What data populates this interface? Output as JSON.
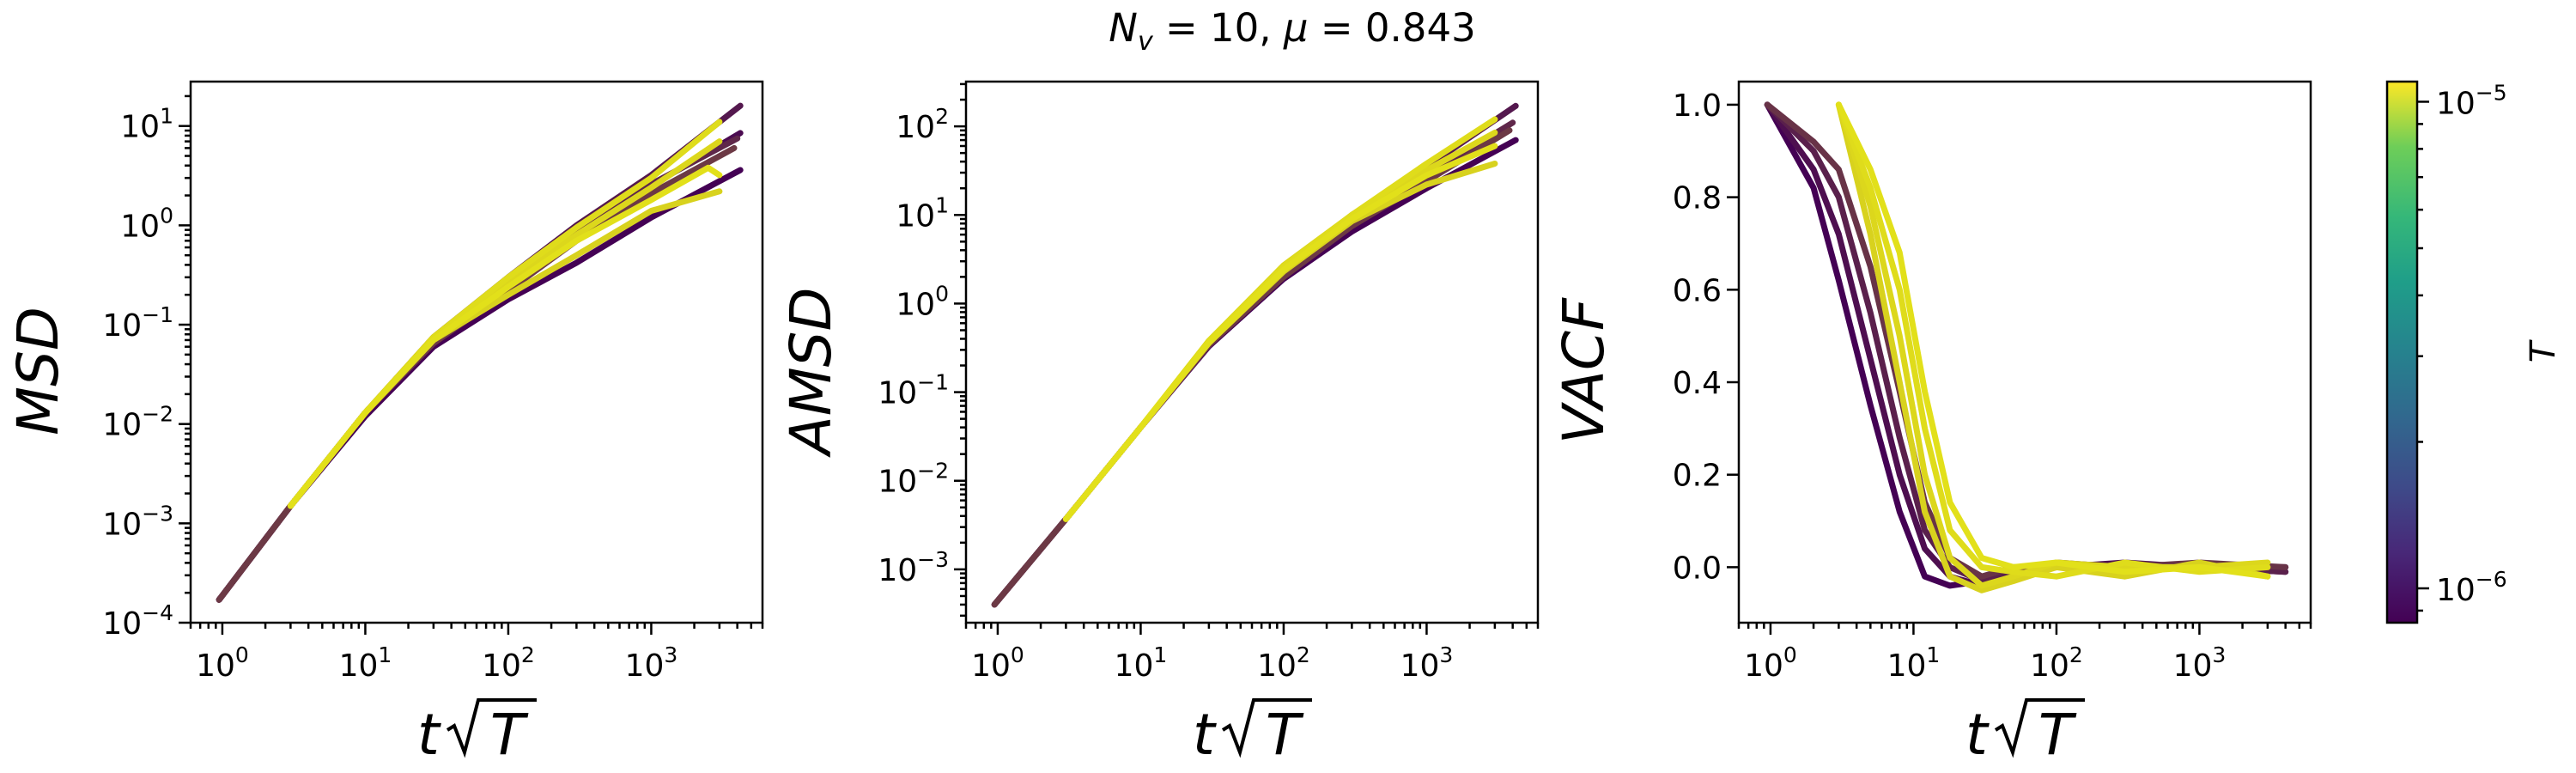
{
  "title": "N_v = 10, μ = 0.843",
  "title_parts": {
    "n": "N",
    "n_sub": "v",
    "n_val": " = 10, ",
    "mu": "μ",
    "mu_val": " = 0.843"
  },
  "colors": {
    "low_T": "#440154",
    "high_T": "#e5e419"
  },
  "colorbar": {
    "label": "T",
    "scale": "log",
    "colormap": "viridis",
    "range": [
      8.5e-07,
      1.1e-05
    ],
    "ticks": [
      {
        "value": 1e-06,
        "base": "10",
        "exp": "−6"
      },
      {
        "value": 1e-05,
        "base": "10",
        "exp": "−5"
      }
    ]
  },
  "chart_data": [
    {
      "id": "msd",
      "type": "line",
      "xscale": "log",
      "yscale": "log",
      "xlim": [
        0.6,
        6000
      ],
      "ylim": [
        0.0001,
        28
      ],
      "xlabel": {
        "main": "t",
        "rad": "T"
      },
      "ylabel": "MSD",
      "xticks": [
        {
          "value": 1,
          "base": "10",
          "exp": "0"
        },
        {
          "value": 10,
          "base": "10",
          "exp": "1"
        },
        {
          "value": 100,
          "base": "10",
          "exp": "2"
        },
        {
          "value": 1000,
          "base": "10",
          "exp": "3"
        }
      ],
      "yticks": [
        {
          "value": 0.0001,
          "base": "10",
          "exp": "−4"
        },
        {
          "value": 0.001,
          "base": "10",
          "exp": "−3"
        },
        {
          "value": 0.01,
          "base": "10",
          "exp": "−2"
        },
        {
          "value": 0.1,
          "base": "10",
          "exp": "−1"
        },
        {
          "value": 1,
          "base": "10",
          "exp": "0"
        },
        {
          "value": 10,
          "base": "10",
          "exp": "1"
        }
      ],
      "series": [
        {
          "T": 8.5e-07,
          "x": [
            0.95,
            3,
            10,
            30,
            100,
            300,
            1000,
            4200
          ],
          "y": [
            0.00017,
            0.0015,
            0.012,
            0.06,
            0.18,
            0.42,
            1.2,
            3.6
          ]
        },
        {
          "T": 9.5e-07,
          "x": [
            0.95,
            3,
            10,
            30,
            100,
            300,
            1000,
            4200
          ],
          "y": [
            0.00017,
            0.0015,
            0.013,
            0.07,
            0.25,
            0.8,
            2.5,
            8.5
          ]
        },
        {
          "T": 1.1e-06,
          "x": [
            0.95,
            3,
            10,
            30,
            100,
            300,
            1000,
            4200
          ],
          "y": [
            0.00017,
            0.0015,
            0.013,
            0.075,
            0.3,
            1.0,
            3.2,
            16
          ]
        },
        {
          "T": 1.3e-06,
          "x": [
            0.95,
            3,
            10,
            30,
            100,
            300,
            1000,
            4000
          ],
          "y": [
            0.00017,
            0.0015,
            0.013,
            0.07,
            0.26,
            0.85,
            2.6,
            7.5
          ]
        },
        {
          "T": 1.6e-06,
          "x": [
            0.95,
            3,
            10,
            30,
            100,
            300,
            1000,
            3800
          ],
          "y": [
            0.00017,
            0.0015,
            0.013,
            0.065,
            0.22,
            0.7,
            2.1,
            6
          ]
        },
        {
          "T": 9e-06,
          "x": [
            3,
            10,
            30,
            100,
            300,
            1000,
            3000
          ],
          "y": [
            0.0015,
            0.013,
            0.07,
            0.2,
            0.5,
            1.4,
            2.2
          ]
        },
        {
          "T": 9.5e-06,
          "x": [
            3,
            10,
            30,
            100,
            300,
            1000,
            3000
          ],
          "y": [
            0.0015,
            0.013,
            0.075,
            0.27,
            0.8,
            2.4,
            7
          ]
        },
        {
          "T": 1e-05,
          "x": [
            3,
            10,
            30,
            100,
            300,
            1000,
            3000
          ],
          "y": [
            0.0015,
            0.013,
            0.075,
            0.3,
            0.95,
            3.0,
            11
          ]
        },
        {
          "T": 1.05e-05,
          "x": [
            3,
            10,
            30,
            100,
            300,
            1000,
            2500,
            3000
          ],
          "y": [
            0.0015,
            0.013,
            0.07,
            0.24,
            0.7,
            1.8,
            3.8,
            3.2
          ]
        }
      ]
    },
    {
      "id": "amsd",
      "type": "line",
      "xscale": "log",
      "yscale": "log",
      "xlim": [
        0.6,
        6000
      ],
      "ylim": [
        0.00025,
        320
      ],
      "xlabel": {
        "main": "t",
        "rad": "T"
      },
      "ylabel": "AMSD",
      "xticks": [
        {
          "value": 1,
          "base": "10",
          "exp": "0"
        },
        {
          "value": 10,
          "base": "10",
          "exp": "1"
        },
        {
          "value": 100,
          "base": "10",
          "exp": "2"
        },
        {
          "value": 1000,
          "base": "10",
          "exp": "3"
        }
      ],
      "yticks": [
        {
          "value": 0.001,
          "base": "10",
          "exp": "−3"
        },
        {
          "value": 0.01,
          "base": "10",
          "exp": "−2"
        },
        {
          "value": 0.1,
          "base": "10",
          "exp": "−1"
        },
        {
          "value": 1,
          "base": "10",
          "exp": "0"
        },
        {
          "value": 10,
          "base": "10",
          "exp": "1"
        },
        {
          "value": 100,
          "base": "10",
          "exp": "2"
        }
      ],
      "series": [
        {
          "T": 8.5e-07,
          "x": [
            0.95,
            3,
            10,
            30,
            100,
            300,
            1000,
            4200
          ],
          "y": [
            0.0004,
            0.0037,
            0.04,
            0.33,
            1.9,
            6.5,
            20,
            70
          ]
        },
        {
          "T": 1.1e-06,
          "x": [
            0.95,
            3,
            10,
            30,
            100,
            300,
            1000,
            4200
          ],
          "y": [
            0.0004,
            0.0037,
            0.04,
            0.36,
            2.4,
            10,
            35,
            170
          ]
        },
        {
          "T": 1.3e-06,
          "x": [
            0.95,
            3,
            10,
            30,
            100,
            300,
            1000,
            4000
          ],
          "y": [
            0.0004,
            0.0037,
            0.04,
            0.35,
            2.2,
            8.5,
            28,
            110
          ]
        },
        {
          "T": 1.6e-06,
          "x": [
            0.95,
            3,
            10,
            30,
            100,
            300,
            1000,
            3800
          ],
          "y": [
            0.0004,
            0.0037,
            0.04,
            0.34,
            2.0,
            7.5,
            24,
            90
          ]
        },
        {
          "T": 9e-06,
          "x": [
            3,
            10,
            30,
            100,
            300,
            1000,
            3000
          ],
          "y": [
            0.0037,
            0.04,
            0.36,
            2.3,
            8.5,
            22,
            38
          ]
        },
        {
          "T": 9.5e-06,
          "x": [
            3,
            10,
            30,
            100,
            300,
            1000,
            3000
          ],
          "y": [
            0.0037,
            0.04,
            0.38,
            2.7,
            10,
            32,
            85
          ]
        },
        {
          "T": 1e-05,
          "x": [
            3,
            10,
            30,
            100,
            300,
            1000,
            3000
          ],
          "y": [
            0.0037,
            0.04,
            0.38,
            2.6,
            10,
            38,
            120
          ]
        },
        {
          "T": 1.05e-05,
          "x": [
            3,
            10,
            30,
            100,
            300,
            1000,
            3000
          ],
          "y": [
            0.0037,
            0.04,
            0.36,
            2.4,
            9,
            28,
            60
          ]
        }
      ]
    },
    {
      "id": "vacf",
      "type": "line",
      "xscale": "log",
      "yscale": "linear",
      "xlim": [
        0.6,
        6000
      ],
      "ylim": [
        -0.12,
        1.05
      ],
      "xlabel": {
        "main": "t",
        "rad": "T"
      },
      "ylabel": "VACF",
      "xticks": [
        {
          "value": 1,
          "base": "10",
          "exp": "0"
        },
        {
          "value": 10,
          "base": "10",
          "exp": "1"
        },
        {
          "value": 100,
          "base": "10",
          "exp": "2"
        },
        {
          "value": 1000,
          "base": "10",
          "exp": "3"
        }
      ],
      "yticks": [
        {
          "value": 0.0,
          "label": "0.0"
        },
        {
          "value": 0.2,
          "label": "0.2"
        },
        {
          "value": 0.4,
          "label": "0.4"
        },
        {
          "value": 0.6,
          "label": "0.6"
        },
        {
          "value": 0.8,
          "label": "0.8"
        },
        {
          "value": 1.0,
          "label": "1.0"
        }
      ],
      "series": [
        {
          "T": 8.5e-07,
          "x": [
            0.95,
            2,
            3,
            5,
            8,
            12,
            18,
            30,
            50,
            100,
            300,
            1000,
            4000
          ],
          "y": [
            1.0,
            0.82,
            0.62,
            0.35,
            0.12,
            -0.02,
            -0.04,
            -0.03,
            -0.01,
            0.0,
            0.0,
            0.0,
            0.0
          ]
        },
        {
          "T": 1e-06,
          "x": [
            0.95,
            2,
            3,
            5,
            8,
            12,
            18,
            30,
            50,
            100,
            300,
            1000,
            4000
          ],
          "y": [
            1.0,
            0.86,
            0.72,
            0.45,
            0.2,
            0.04,
            -0.02,
            -0.04,
            -0.02,
            0.0,
            0.01,
            0.0,
            -0.01
          ]
        },
        {
          "T": 1.2e-06,
          "x": [
            0.95,
            2,
            3,
            5,
            8,
            12,
            18,
            30,
            50,
            100,
            300,
            1000,
            4000
          ],
          "y": [
            1.0,
            0.9,
            0.8,
            0.55,
            0.28,
            0.08,
            0.0,
            -0.03,
            -0.01,
            0.01,
            0.0,
            0.0,
            -0.01
          ]
        },
        {
          "T": 1.5e-06,
          "x": [
            0.95,
            2,
            3,
            5,
            8,
            12,
            18,
            30,
            50,
            100,
            300,
            1000,
            4000
          ],
          "y": [
            1.0,
            0.92,
            0.86,
            0.65,
            0.38,
            0.14,
            0.02,
            -0.02,
            0.0,
            0.0,
            0.0,
            0.01,
            0.0
          ]
        },
        {
          "T": 9e-06,
          "x": [
            3,
            5,
            8,
            12,
            18,
            30,
            50,
            100,
            300,
            1000,
            3000
          ],
          "y": [
            1.0,
            0.72,
            0.4,
            0.12,
            -0.02,
            -0.05,
            -0.03,
            0.0,
            -0.02,
            0.01,
            -0.02
          ]
        },
        {
          "T": 9.5e-06,
          "x": [
            3,
            5,
            8,
            12,
            18,
            30,
            50,
            100,
            300,
            1000,
            3000
          ],
          "y": [
            1.0,
            0.78,
            0.5,
            0.2,
            0.02,
            -0.04,
            -0.02,
            0.01,
            0.0,
            0.0,
            0.01
          ]
        },
        {
          "T": 1e-05,
          "x": [
            3,
            5,
            8,
            12,
            18,
            30,
            50,
            100,
            300,
            1000,
            3000
          ],
          "y": [
            1.0,
            0.82,
            0.6,
            0.3,
            0.08,
            0.0,
            -0.01,
            -0.02,
            0.01,
            -0.01,
            0.0
          ]
        },
        {
          "T": 1.05e-05,
          "x": [
            3,
            5,
            8,
            12,
            18,
            30,
            50,
            100,
            300,
            1000,
            3000
          ],
          "y": [
            1.0,
            0.86,
            0.68,
            0.38,
            0.14,
            0.02,
            0.0,
            0.01,
            -0.01,
            0.0,
            -0.02
          ]
        }
      ]
    }
  ]
}
